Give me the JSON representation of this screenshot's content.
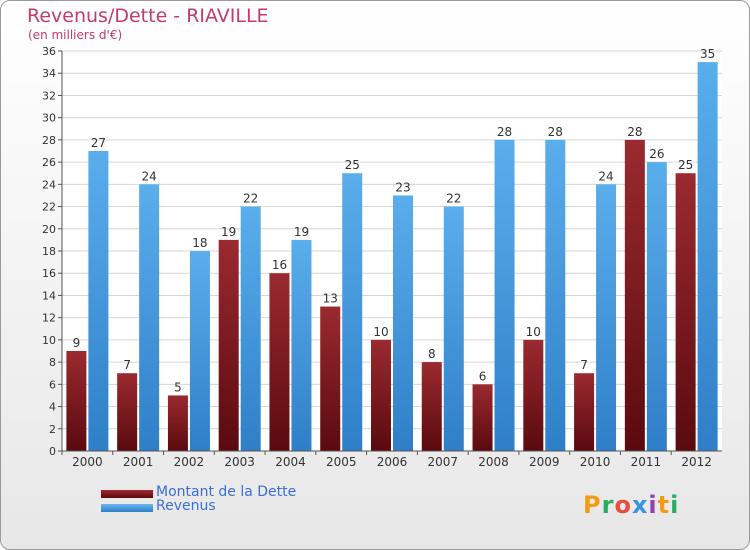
{
  "chart_data": {
    "type": "bar",
    "title": "Revenus/Dette - RIAVILLE",
    "subtitle": "(en milliers d'€)",
    "categories": [
      "2000",
      "2001",
      "2002",
      "2003",
      "2004",
      "2005",
      "2006",
      "2007",
      "2008",
      "2009",
      "2010",
      "2011",
      "2012"
    ],
    "series": [
      {
        "name": "Montant de la Dette",
        "color": "#6b0f14",
        "values": [
          9,
          7,
          5,
          19,
          16,
          13,
          10,
          8,
          6,
          10,
          7,
          28,
          25
        ]
      },
      {
        "name": "Revenus",
        "color": "#3b94e0",
        "values": [
          27,
          24,
          18,
          22,
          19,
          25,
          23,
          22,
          28,
          28,
          24,
          26,
          35
        ]
      }
    ],
    "ylim": [
      0,
      36
    ],
    "yticks": [
      0,
      2,
      4,
      6,
      8,
      10,
      12,
      14,
      16,
      18,
      20,
      22,
      24,
      26,
      28,
      30,
      32,
      34,
      36
    ],
    "grid": true,
    "legend": "bottom-left"
  },
  "logo_text": "Proxiti"
}
